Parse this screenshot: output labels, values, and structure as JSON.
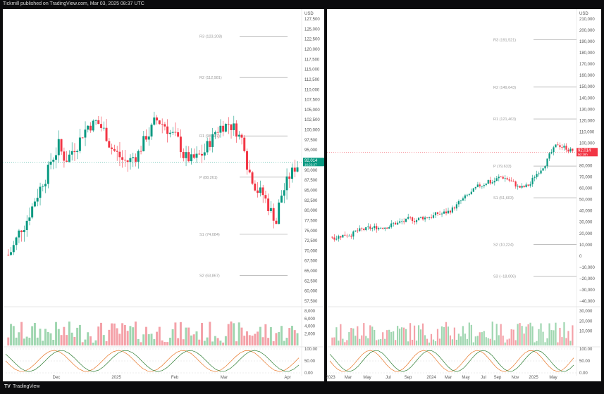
{
  "header": {
    "published": "Tickmill published on TradingView.com, Mar 03, 2025 08:37 UTC"
  },
  "footer": {
    "brand": "TradingView"
  },
  "colors": {
    "up": "#089981",
    "down": "#f23645",
    "upVol": "#9fd6b0",
    "downVol": "#f4a1a8",
    "grid": "#e6e6e6",
    "text": "#555555"
  },
  "chart_data": [
    {
      "id": "left",
      "type": "candlestick",
      "currency": "USD",
      "price_axis": {
        "min": 57500,
        "max": 127500,
        "ticks": [
          "127,500",
          "125,000",
          "122,500",
          "120,000",
          "117,500",
          "115,000",
          "112,500",
          "110,000",
          "107,500",
          "105,000",
          "102,500",
          "100,000",
          "97,500",
          "95,000",
          "92,500",
          "90,000",
          "87,500",
          "85,000",
          "82,500",
          "80,000",
          "77,500",
          "75,000",
          "72,500",
          "70,000",
          "67,500",
          "65,000",
          "62,500",
          "60,000",
          "57,500"
        ]
      },
      "time_axis": {
        "labels": [
          "Dec",
          "2025",
          "Feb",
          "Mar",
          "Apr"
        ]
      },
      "pivots": [
        {
          "label": "R3 (123,208)",
          "value": 123208
        },
        {
          "label": "R2 (112,981)",
          "value": 112981
        },
        {
          "label": "R1 (98,487)",
          "value": 98487
        },
        {
          "label": "P (88,261)",
          "value": 88261
        },
        {
          "label": "S1 (74,084)",
          "value": 74084
        },
        {
          "label": "S2 (63,867)",
          "value": 63867
        }
      ],
      "last_price": {
        "label": "92,014",
        "timer": "16:22:27",
        "value": 92014
      },
      "volume_axis": {
        "ticks": [
          "8,000",
          "6,000",
          "4,000",
          "2,000"
        ]
      },
      "osc_axis": {
        "ticks": [
          "100.00",
          "50.00",
          "0.00"
        ]
      }
    },
    {
      "id": "right",
      "type": "candlestick",
      "currency": "USD",
      "price_axis": {
        "min": -40000,
        "max": 210000,
        "ticks": [
          "210,000",
          "200,000",
          "190,000",
          "180,000",
          "170,000",
          "160,000",
          "150,000",
          "140,000",
          "130,000",
          "120,000",
          "110,000",
          "100,000",
          "90,000",
          "80,000",
          "70,000",
          "60,000",
          "50,000",
          "40,000",
          "30,000",
          "20,000",
          "10,000",
          "0",
          "−10,000",
          "−20,000",
          "−30,000",
          "−40,000"
        ]
      },
      "time_axis": {
        "labels": [
          "2023",
          "Mar",
          "May",
          "Jul",
          "Sep",
          "2024",
          "Mar",
          "May",
          "Jul",
          "Sep",
          "Nov",
          "2025",
          "May"
        ]
      },
      "pivots": [
        {
          "label": "R3 (191,521)",
          "value": 191521
        },
        {
          "label": "R2 (149,643)",
          "value": 149643
        },
        {
          "label": "R1 (121,463)",
          "value": 121463
        },
        {
          "label": "P (79,633)",
          "value": 79633
        },
        {
          "label": "S1 (51,603)",
          "value": 51603
        },
        {
          "label": "S2 (10,224)",
          "value": 10224
        },
        {
          "label": "S3 (−18,006)",
          "value": -18006
        }
      ],
      "last_price": {
        "label": "92,014",
        "timer": "9d 16h",
        "value": 92014
      },
      "volume_axis": {
        "ticks": [
          "30,000",
          "20,000",
          "10,000"
        ]
      },
      "osc_axis": {
        "ticks": [
          "100.00",
          "50.00",
          "0.00"
        ]
      }
    }
  ]
}
